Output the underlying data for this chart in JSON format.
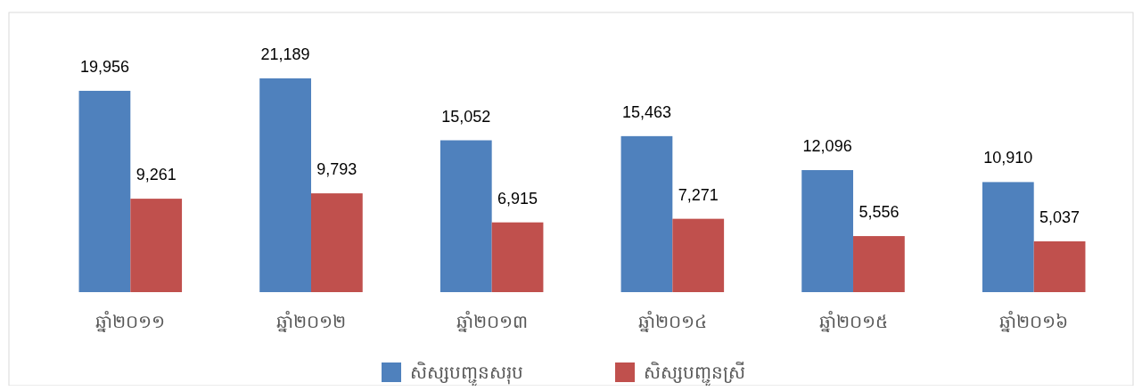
{
  "chart_data": {
    "type": "bar",
    "categories": [
      "ឆ្នាំ២០១១",
      "ឆ្នាំ២០១២",
      "ឆ្នាំ២០១៣",
      "ឆ្នាំ២០១៤",
      "ឆ្នាំ២០១៥",
      "ឆ្នាំ២០១៦"
    ],
    "series": [
      {
        "name": "សិស្សបញ្ជូនសរុប",
        "color": "#4f81bd",
        "values": [
          19956,
          21189,
          15052,
          15463,
          12096,
          10910
        ],
        "value_labels": [
          "19,956",
          "21,189",
          "15,052",
          "15,463",
          "12,096",
          "10,910"
        ]
      },
      {
        "name": "សិស្សបញ្ជូនស្រី",
        "color": "#c0504d",
        "values": [
          9261,
          9793,
          6915,
          7271,
          5556,
          5037
        ],
        "value_labels": [
          "9,261",
          "9,793",
          "6,915",
          "7,271",
          "5,556",
          "5,037"
        ]
      }
    ],
    "legend": "bottom"
  }
}
